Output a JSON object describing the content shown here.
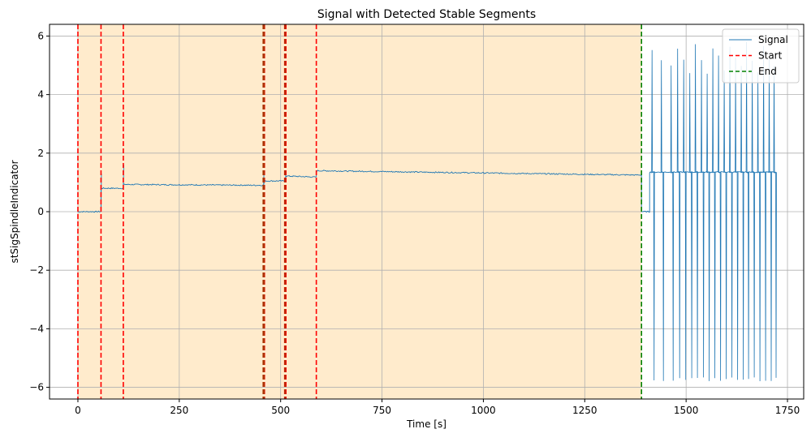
{
  "chart_data": {
    "type": "line",
    "title": "Signal with Detected Stable Segments",
    "xlabel": "Time [s]",
    "ylabel": "stSigSpindleIndicator",
    "xlim": [
      -70,
      1790
    ],
    "ylim": [
      -6.4,
      6.4
    ],
    "xticks": [
      0,
      250,
      500,
      750,
      1000,
      1250,
      1500,
      1750
    ],
    "xtick_labels": [
      "0",
      "250",
      "500",
      "750",
      "1000",
      "1250",
      "1500",
      "1750"
    ],
    "yticks": [
      -6,
      -4,
      -2,
      0,
      2,
      4,
      6
    ],
    "ytick_labels": [
      "−6",
      "−4",
      "−2",
      "0",
      "2",
      "4",
      "6"
    ],
    "grid": true,
    "legend": {
      "position": "top-right",
      "entries": [
        {
          "label": "Signal",
          "color": "#1f77b4",
          "style": "solid"
        },
        {
          "label": "Start",
          "color": "#ff0000",
          "style": "dashed"
        },
        {
          "label": "End",
          "color": "#008000",
          "style": "dashed"
        }
      ]
    },
    "stable_segments": [
      {
        "start": 0,
        "end": 57
      },
      {
        "start": 57,
        "end": 112
      },
      {
        "start": 112,
        "end": 458
      },
      {
        "start": 458,
        "end": 512
      },
      {
        "start": 512,
        "end": 588
      },
      {
        "start": 588,
        "end": 1390
      }
    ],
    "start_lines": [
      0,
      57,
      112,
      458,
      460,
      510,
      513,
      588
    ],
    "end_lines": [
      457,
      459,
      511,
      1390
    ],
    "signal": {
      "name": "Signal",
      "color": "#1f77b4",
      "steady_levels": [
        {
          "x_start": 0,
          "x_end": 57,
          "y": 0.0
        },
        {
          "x_start": 57,
          "x_end": 112,
          "y": 0.8
        },
        {
          "x_start": 112,
          "x_end": 458,
          "y_start": 0.93,
          "y_end": 0.9
        },
        {
          "x_start": 460,
          "x_end": 510,
          "y": 1.05
        },
        {
          "x_start": 513,
          "x_end": 588,
          "y_start": 1.22,
          "y_end": 1.18
        },
        {
          "x_start": 588,
          "x_end": 1390,
          "y_start": 1.4,
          "y_end": 1.25
        },
        {
          "x_start": 1390,
          "x_end": 1410,
          "y": 0.0
        },
        {
          "x_start": 1410,
          "x_end": 1720,
          "y": 1.35
        }
      ],
      "oscillation_spikes": [
        1415,
        1438,
        1462,
        1478,
        1493,
        1508,
        1522,
        1537,
        1551,
        1565,
        1579,
        1593,
        1607,
        1621,
        1635,
        1648,
        1662,
        1676,
        1690,
        1704,
        1716
      ],
      "spike_max": 5.8,
      "spike_min": -5.8
    },
    "shade_color": "#ffebcc"
  }
}
